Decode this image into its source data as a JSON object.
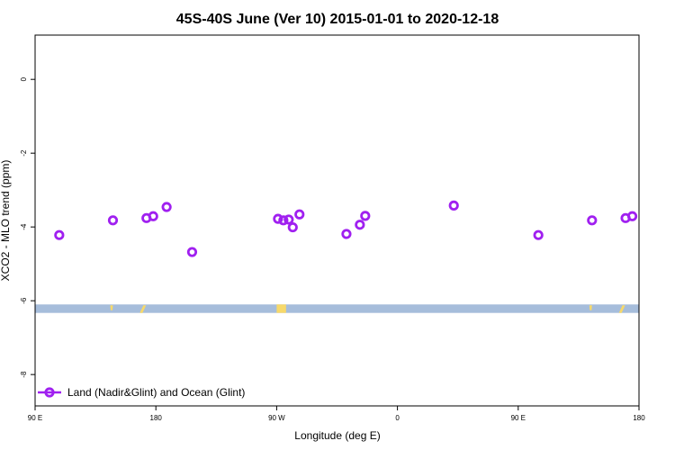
{
  "chart_data": {
    "type": "scatter",
    "title": "45S-40S June (Ver 10)   2015-01-01 to 2020-12-18",
    "xlabel": "Longitude (deg E)",
    "ylabel": "XCO2 - MLO trend (ppm)",
    "xlim": [
      90,
      540
    ],
    "ylim": [
      -8.85,
      1.2
    ],
    "x_ticks": [
      {
        "value": 90,
        "label": "90 E"
      },
      {
        "value": 180,
        "label": "180"
      },
      {
        "value": 270,
        "label": "90 W"
      },
      {
        "value": 360,
        "label": "0"
      },
      {
        "value": 450,
        "label": "90 E"
      },
      {
        "value": 540,
        "label": "180"
      }
    ],
    "y_ticks": [
      {
        "value": 0,
        "label": "0"
      },
      {
        "value": -2,
        "label": "-2"
      },
      {
        "value": -4,
        "label": "-4"
      },
      {
        "value": -6,
        "label": "-6"
      },
      {
        "value": -8,
        "label": "-8"
      }
    ],
    "series": [
      {
        "name": "Land (Nadir&Glint) and Ocean (Glint)",
        "color": "#a020f0",
        "marker": "open-circle",
        "points": [
          {
            "x": 108,
            "y": -4.22
          },
          {
            "x": 148,
            "y": -3.82
          },
          {
            "x": 173,
            "y": -3.76
          },
          {
            "x": 178,
            "y": -3.71
          },
          {
            "x": 188,
            "y": -3.46
          },
          {
            "x": 207,
            "y": -4.68
          },
          {
            "x": 271,
            "y": -3.78
          },
          {
            "x": 275,
            "y": -3.82
          },
          {
            "x": 279,
            "y": -3.8
          },
          {
            "x": 282,
            "y": -4.01
          },
          {
            "x": 287,
            "y": -3.66
          },
          {
            "x": 322,
            "y": -4.19
          },
          {
            "x": 332,
            "y": -3.94
          },
          {
            "x": 336,
            "y": -3.7
          },
          {
            "x": 402,
            "y": -3.42
          },
          {
            "x": 465,
            "y": -4.22
          },
          {
            "x": 505,
            "y": -3.82
          },
          {
            "x": 530,
            "y": -3.76
          },
          {
            "x": 535,
            "y": -3.71
          }
        ]
      }
    ],
    "surface_band": {
      "y_top": -6.1,
      "y_bottom": -6.33,
      "ocean_color": "#a6bddb",
      "land_color": "#f7d96a",
      "land_segments": [
        {
          "x0": 146,
          "x1": 148,
          "shape": "tick"
        },
        {
          "x0": 168,
          "x1": 172,
          "shape": "slant"
        },
        {
          "x0": 270,
          "x1": 277,
          "shape": "block"
        },
        {
          "x0": 503,
          "x1": 505,
          "shape": "tick"
        },
        {
          "x0": 525,
          "x1": 529,
          "shape": "slant"
        }
      ]
    },
    "legend": {
      "position": "bottom-left"
    },
    "grid": false
  }
}
